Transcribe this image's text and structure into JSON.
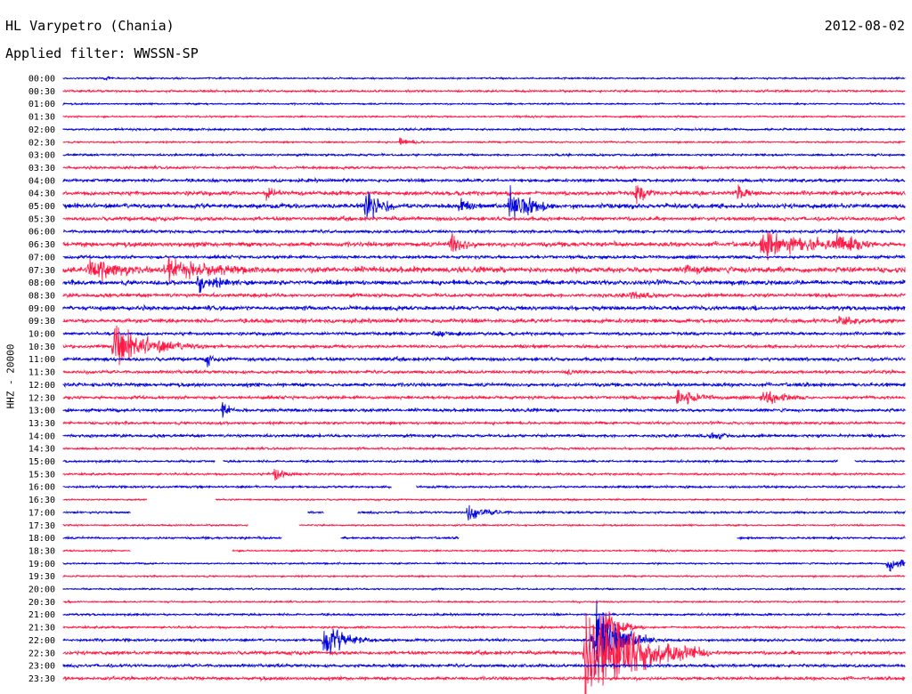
{
  "header": {
    "station": "HL Varypetro (Chania)",
    "date": "2012-08-02",
    "filter": "Applied filter: WWSSN-SP"
  },
  "channel": "HHZ - 20000",
  "colors": {
    "odd_row": "#0000dd",
    "even_row": "#ff1744",
    "text": "#000000"
  },
  "chart_data": {
    "type": "line",
    "title": "HL Varypetro (Chania)",
    "xlabel": "",
    "ylabel": "HHZ - 20000",
    "row_labels": [
      "00:00",
      "00:30",
      "01:00",
      "01:30",
      "02:00",
      "02:30",
      "03:00",
      "03:30",
      "04:00",
      "04:30",
      "05:00",
      "05:30",
      "06:00",
      "06:30",
      "07:00",
      "07:30",
      "08:00",
      "08:30",
      "09:00",
      "09:30",
      "10:00",
      "10:30",
      "11:00",
      "11:30",
      "12:00",
      "12:30",
      "13:00",
      "13:30",
      "14:00",
      "14:30",
      "15:00",
      "15:30",
      "16:00",
      "16:30",
      "17:00",
      "17:30",
      "18:00",
      "18:30",
      "19:00",
      "19:30",
      "20:00",
      "20:30",
      "21:00",
      "21:30",
      "22:00",
      "22:30",
      "23:00",
      "23:30"
    ],
    "row_duration_min": 30,
    "row_colors": [
      "blue",
      "red"
    ],
    "noise_level": [
      0.6,
      0.8,
      0.6,
      0.6,
      0.8,
      0.6,
      0.8,
      1.0,
      1.2,
      1.6,
      1.8,
      1.5,
      1.2,
      1.8,
      1.2,
      2.2,
      1.8,
      1.4,
      1.6,
      1.6,
      1.2,
      1.2,
      1.4,
      1.2,
      1.4,
      1.2,
      1.2,
      1.0,
      1.1,
      0.8,
      0.8,
      0.8,
      0.8,
      0.6,
      0.8,
      0.6,
      0.8,
      0.6,
      0.6,
      0.6,
      0.6,
      0.6,
      0.8,
      0.8,
      1.0,
      1.4,
      1.2,
      1.2
    ],
    "events": [
      {
        "row": "00:00",
        "pos": 0.05,
        "amp": 2,
        "dur": 0.01
      },
      {
        "row": "02:30",
        "pos": 0.4,
        "amp": 3,
        "dur": 0.02
      },
      {
        "row": "04:30",
        "pos": 0.24,
        "amp": 6,
        "dur": 0.02
      },
      {
        "row": "04:30",
        "pos": 0.68,
        "amp": 7,
        "dur": 0.02
      },
      {
        "row": "04:30",
        "pos": 0.8,
        "amp": 6,
        "dur": 0.02
      },
      {
        "row": "05:00",
        "pos": 0.36,
        "amp": 12,
        "dur": 0.02
      },
      {
        "row": "05:00",
        "pos": 0.53,
        "amp": 12,
        "dur": 0.03
      },
      {
        "row": "05:00",
        "pos": 0.47,
        "amp": 5,
        "dur": 0.02
      },
      {
        "row": "06:30",
        "pos": 0.46,
        "amp": 9,
        "dur": 0.02
      },
      {
        "row": "06:30",
        "pos": 0.83,
        "amp": 10,
        "dur": 0.07
      },
      {
        "row": "06:30",
        "pos": 0.92,
        "amp": 9,
        "dur": 0.03
      },
      {
        "row": "07:30",
        "pos": 0.03,
        "amp": 10,
        "dur": 0.05
      },
      {
        "row": "07:30",
        "pos": 0.12,
        "amp": 8,
        "dur": 0.08
      },
      {
        "row": "07:30",
        "pos": 0.74,
        "amp": 5,
        "dur": 0.03
      },
      {
        "row": "08:00",
        "pos": 0.16,
        "amp": 7,
        "dur": 0.03
      },
      {
        "row": "08:30",
        "pos": 0.67,
        "amp": 4,
        "dur": 0.03
      },
      {
        "row": "09:30",
        "pos": 0.92,
        "amp": 4,
        "dur": 0.03
      },
      {
        "row": "10:00",
        "pos": 0.44,
        "amp": 3,
        "dur": 0.04
      },
      {
        "row": "10:30",
        "pos": 0.06,
        "amp": 14,
        "dur": 0.05
      },
      {
        "row": "11:00",
        "pos": 0.17,
        "amp": 5,
        "dur": 0.01
      },
      {
        "row": "11:30",
        "pos": 0.6,
        "amp": 3,
        "dur": 0.02
      },
      {
        "row": "12:30",
        "pos": 0.73,
        "amp": 6,
        "dur": 0.03
      },
      {
        "row": "12:30",
        "pos": 0.83,
        "amp": 6,
        "dur": 0.03
      },
      {
        "row": "13:00",
        "pos": 0.19,
        "amp": 6,
        "dur": 0.01
      },
      {
        "row": "14:00",
        "pos": 0.77,
        "amp": 3,
        "dur": 0.03
      },
      {
        "row": "15:30",
        "pos": 0.25,
        "amp": 5,
        "dur": 0.02
      },
      {
        "row": "17:00",
        "pos": 0.48,
        "amp": 5,
        "dur": 0.03
      },
      {
        "row": "19:00",
        "pos": 0.98,
        "amp": 7,
        "dur": 0.02
      },
      {
        "row": "22:00",
        "pos": 0.31,
        "amp": 12,
        "dur": 0.03
      },
      {
        "row": "22:30",
        "pos": 0.62,
        "amp": 38,
        "dur": 0.06
      },
      {
        "row": "22:00",
        "pos": 0.63,
        "amp": 25,
        "dur": 0.03
      },
      {
        "row": "21:30",
        "pos": 0.64,
        "amp": 15,
        "dur": 0.02
      }
    ],
    "gaps": [
      {
        "row": "15:00",
        "start": 0.18,
        "end": 0.19
      },
      {
        "row": "16:00",
        "start": 0.39,
        "end": 0.42
      },
      {
        "row": "16:30",
        "start": 0.1,
        "end": 0.18
      },
      {
        "row": "17:00",
        "start": 0.08,
        "end": 0.29
      },
      {
        "row": "17:00",
        "start": 0.31,
        "end": 0.35
      },
      {
        "row": "17:30",
        "start": 0.22,
        "end": 0.28
      },
      {
        "row": "18:00",
        "start": 0.26,
        "end": 0.33
      },
      {
        "row": "18:00",
        "start": 0.47,
        "end": 0.8
      },
      {
        "row": "18:30",
        "start": 0.08,
        "end": 0.2
      },
      {
        "row": "15:00",
        "start": 0.92,
        "end": 0.94
      }
    ]
  }
}
